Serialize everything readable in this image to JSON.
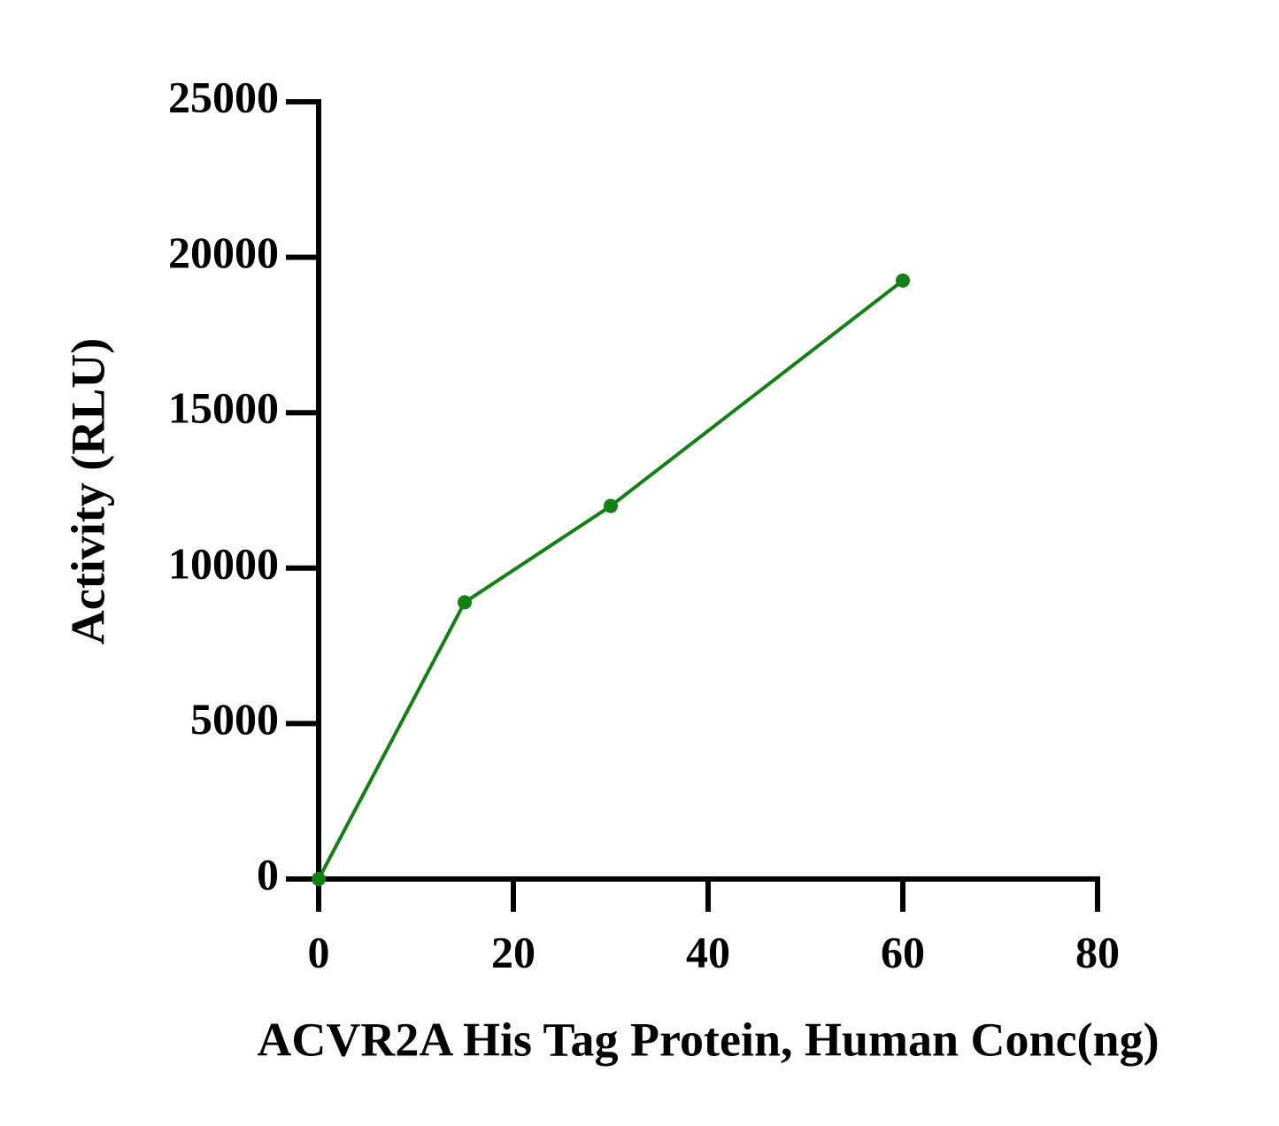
{
  "chart_data": {
    "type": "line",
    "x_label": "ACVR2A His Tag Protein, Human Conc(ng)",
    "y_label": "Activity (RLU)",
    "series": [
      {
        "color": "#148014",
        "x": [
          0,
          15,
          30,
          60
        ],
        "values": [
          0,
          8900,
          12000,
          19250
        ]
      }
    ],
    "xlim": [
      0,
      80
    ],
    "xticks": [
      0,
      20,
      40,
      60,
      80
    ],
    "ylim": [
      0,
      25000
    ],
    "yticks": [
      0,
      5000,
      10000,
      15000,
      20000,
      25000
    ],
    "grid": false
  }
}
